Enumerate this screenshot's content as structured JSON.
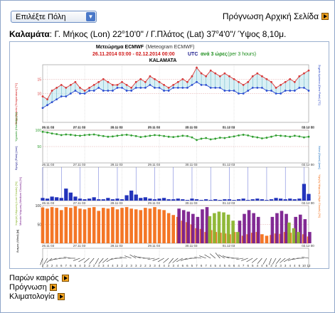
{
  "header": {
    "city_select": "Επιλέξτε Πόλη",
    "home_link": "Πρόγνωση Αρχική Σελίδα",
    "go_icon": "orange-arrow-icon"
  },
  "location": {
    "name": "Καλαμάτα",
    "info_1": ": Γ. Μήκος (Lon) 22",
    "deg_1": "o",
    "info_2": "10'0\" / Γ.Πλάτος (Lat) 37",
    "deg_2": "o",
    "info_3": "4'0\"/ Ύψος 8,10μ."
  },
  "meteogram": {
    "title_gr": "Μετεώρημα ECMWF",
    "title_en": "(Meteogram ECMWF)",
    "period": "26.11.2014 03:00 - 02.12.2014 00:00",
    "period_utc": "UTC",
    "step_gr": "ανά 3 ώρες",
    "step_en": "(per 3 hours)",
    "station": "KALAMATA",
    "x_tick_labels": [
      "26.11 03",
      "27.11 03",
      "28.11 03",
      "29.11 03",
      "30.11 03",
      "01.12 03",
      "02.12 00"
    ],
    "panel_labels": {
      "temp": "Θερμοκρασία (Temperature) [°C]",
      "dew": "Σημείο Δρόσου (Dew Point) [°C]",
      "rh": "Υγρασία (Humidity) [%]",
      "rain": "Βροχή (Rain) [mm]",
      "snow": "Χιόνι (Snow) [mm]",
      "cloud_low": "Χαμηλή Νέφωση (Low Clouds) [%]",
      "cloud_mid": "Μεσαία Νέφωση (Medium Clouds) [%]",
      "cloud_high": "Υψηλή Νέφωση (High Clouds) [%]",
      "wind": "Άνεμος (Wind) [kt]"
    },
    "temp_ticks": [
      "15",
      "10"
    ],
    "rh_ticks": [
      "100",
      "50"
    ],
    "cloud_ticks": [
      "100",
      "50"
    ],
    "colors": {
      "temp": "#d93a3a",
      "dew": "#2e4fd1",
      "rh": "#2f9e2f",
      "rain": "#2233bb",
      "cloud_orange": "#f36f1a",
      "cloud_green": "#8ab42e",
      "cloud_purple": "#7a1f8e"
    },
    "temp": [
      9,
      8,
      11,
      12,
      13,
      12,
      13,
      14,
      12,
      11,
      12,
      13,
      14,
      15,
      14,
      13,
      13,
      14,
      13,
      12,
      14,
      15,
      14,
      16,
      15,
      14,
      13,
      12,
      13,
      14,
      15,
      14,
      16,
      19,
      17,
      16,
      18,
      17,
      16,
      17,
      16,
      15,
      14,
      13,
      14,
      16,
      17,
      16,
      15,
      14,
      12,
      13,
      14,
      15,
      14,
      16,
      17,
      18
    ],
    "dew": [
      5,
      6,
      7,
      8,
      9,
      9,
      10,
      11,
      10,
      10,
      11,
      11,
      12,
      11,
      11,
      11,
      12,
      12,
      11,
      11,
      12,
      12,
      12,
      13,
      12,
      12,
      11,
      11,
      12,
      12,
      12,
      12,
      13,
      14,
      13,
      13,
      12,
      12,
      12,
      11,
      11,
      11,
      10,
      10,
      11,
      12,
      12,
      12,
      11,
      11,
      10,
      10,
      11,
      11,
      11,
      12,
      12,
      11
    ],
    "rh": [
      95,
      93,
      90,
      88,
      85,
      87,
      86,
      84,
      83,
      85,
      86,
      87,
      84,
      82,
      80,
      81,
      83,
      85,
      86,
      84,
      82,
      79,
      81,
      83,
      85,
      84,
      82,
      80,
      79,
      81,
      83,
      82,
      78,
      70,
      74,
      76,
      72,
      74,
      77,
      76,
      79,
      81,
      84,
      86,
      84,
      80,
      78,
      75,
      77,
      80,
      84,
      83,
      82,
      80,
      83,
      81,
      78,
      80
    ],
    "rain": [
      0.4,
      0.3,
      0.6,
      0.5,
      0.4,
      1.8,
      1.2,
      0.6,
      0.3,
      0.2,
      0.3,
      0.5,
      0.2,
      0.2,
      0.4,
      0.2,
      0.3,
      0.2,
      0.8,
      1.5,
      0.9,
      0.4,
      0.5,
      0.3,
      0.2,
      0.3,
      0.4,
      0.2,
      0.2,
      0.3,
      0.2,
      0.1,
      0.3,
      0.2,
      0.1,
      0.2,
      0.1,
      0.2,
      0.1,
      0.2,
      0.2,
      0.1,
      0.2,
      0.3,
      0.1,
      0.2,
      0.3,
      0.2,
      0.1,
      0.2,
      0.4,
      0.3,
      0.2,
      0.3,
      0.2,
      0.3,
      2.5,
      1.0
    ],
    "cloud_low": [
      95,
      92,
      96,
      94,
      88,
      96,
      94,
      98,
      92,
      90,
      94,
      96,
      86,
      94,
      92,
      96,
      90,
      94,
      96,
      92,
      90,
      88,
      94,
      92,
      96,
      90,
      88,
      80,
      75,
      70,
      60,
      56,
      50,
      40,
      38,
      30,
      35,
      30,
      28,
      26,
      24,
      30,
      22,
      20,
      24,
      28,
      30,
      24,
      20,
      22,
      26,
      25,
      30,
      28,
      22,
      20,
      24,
      18
    ],
    "cloud_mid": [
      0,
      0,
      0,
      0,
      0,
      0,
      0,
      0,
      0,
      0,
      0,
      0,
      0,
      0,
      0,
      0,
      0,
      0,
      0,
      0,
      0,
      0,
      0,
      0,
      0,
      0,
      0,
      0,
      0,
      0,
      0,
      0,
      0,
      0,
      0,
      0,
      72,
      80,
      84,
      82,
      76,
      60,
      30,
      0,
      0,
      0,
      0,
      0,
      0,
      0,
      0,
      0,
      0,
      55,
      40,
      30,
      0,
      0
    ],
    "cloud_high": [
      0,
      0,
      0,
      0,
      0,
      0,
      0,
      0,
      0,
      0,
      0,
      0,
      0,
      0,
      0,
      0,
      0,
      0,
      0,
      0,
      0,
      0,
      0,
      0,
      0,
      0,
      0,
      0,
      0,
      92,
      88,
      84,
      78,
      70,
      90,
      96,
      0,
      0,
      0,
      0,
      0,
      0,
      60,
      78,
      88,
      80,
      70,
      0,
      0,
      70,
      80,
      86,
      78,
      0,
      70,
      76,
      64,
      30
    ],
    "wind_speed": [
      2,
      3,
      2,
      4,
      6,
      7,
      6,
      5,
      4,
      3,
      2,
      2,
      3,
      3,
      4,
      4,
      3,
      2,
      2,
      3,
      3,
      2,
      2,
      3,
      3,
      4,
      4,
      3,
      3,
      4,
      6,
      6,
      5,
      7,
      6,
      7,
      4,
      5,
      4,
      5,
      6,
      6,
      4,
      7,
      6,
      5,
      4,
      4,
      6,
      3,
      2,
      3,
      3,
      4,
      4,
      6,
      10,
      12
    ],
    "wind_dir": [
      200,
      210,
      230,
      250,
      260,
      270,
      280,
      270,
      250,
      240,
      230,
      220,
      210,
      220,
      230,
      240,
      260,
      270,
      280,
      290,
      300,
      290,
      280,
      270,
      260,
      250,
      240,
      230,
      220,
      230,
      240,
      250,
      260,
      270,
      280,
      290,
      300,
      310,
      320,
      300,
      290,
      280,
      270,
      260,
      250,
      240,
      230,
      220,
      210,
      200,
      210,
      220,
      230,
      240,
      250,
      260,
      270,
      280
    ],
    "wind_speed_labels": [
      "2",
      "3",
      "2",
      "4",
      "6",
      "7",
      "6",
      "5",
      "4",
      "3",
      "2",
      "2",
      "3",
      "3",
      "4",
      "4",
      "3",
      "2",
      "2",
      "3",
      "3",
      "2",
      "2",
      "3",
      "3",
      "4",
      "4",
      "3",
      "3",
      "4",
      "6",
      "6",
      "5",
      "7",
      "6",
      "7",
      "4",
      "5",
      "4",
      "5",
      "6",
      "6",
      "4",
      "7",
      "6",
      "5",
      "4",
      "4",
      "6",
      "3",
      "2",
      "3",
      "3",
      "4",
      "4",
      "6",
      "10",
      "12"
    ]
  },
  "links": {
    "current": "Παρών καιρός",
    "forecast": "Πρόγνωση",
    "climate": "Κλιματολογία"
  }
}
